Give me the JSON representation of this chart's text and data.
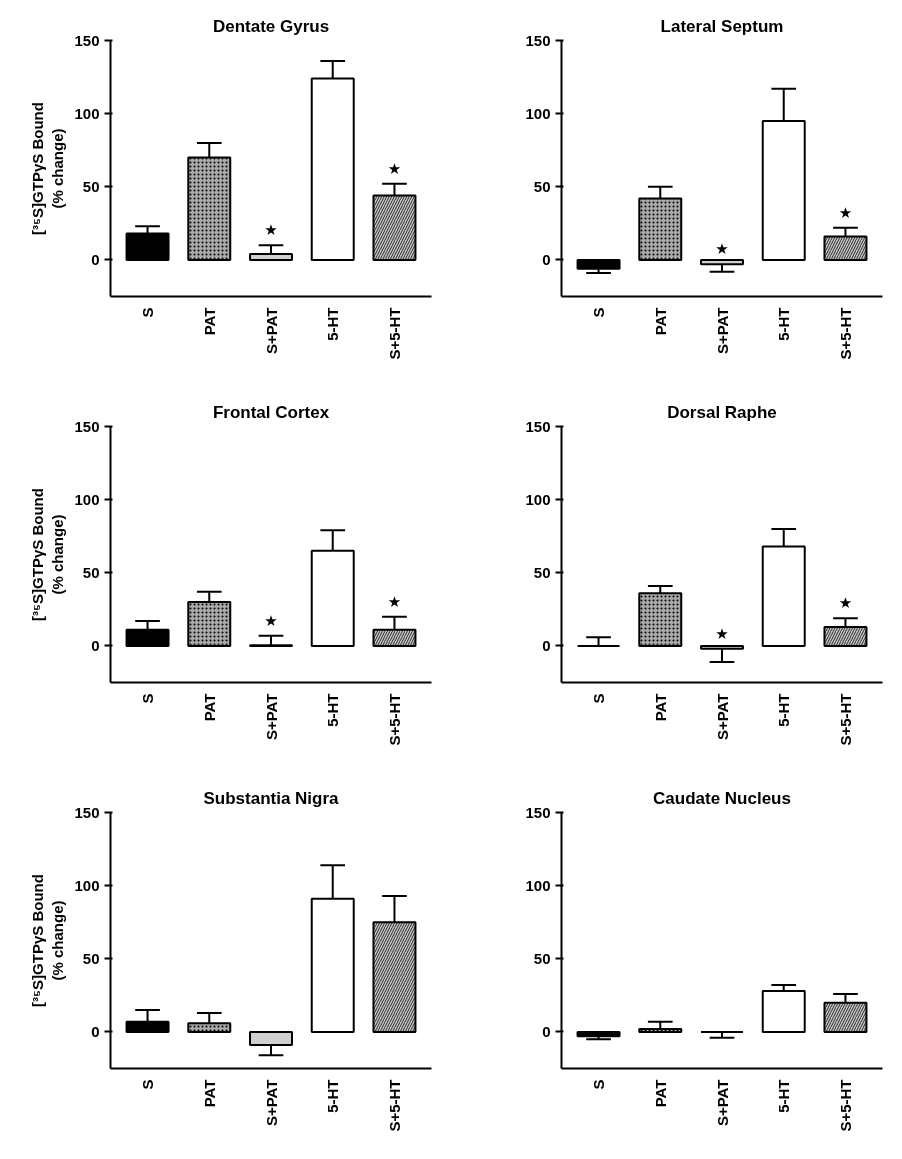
{
  "chart_data": [
    {
      "type": "bar",
      "title": "Dentate Gyrus",
      "ylabel": "[³⁵S]GTPγS Bound\n(% change)",
      "categories": [
        "S",
        "PAT",
        "S+PAT",
        "5-HT",
        "S+5-HT"
      ],
      "values": [
        18,
        70,
        4,
        124,
        44
      ],
      "errors": [
        [
          18,
          23
        ],
        [
          70,
          80
        ],
        [
          4,
          10
        ],
        [
          124,
          136
        ],
        [
          44,
          52
        ]
      ],
      "colors": [
        "#000000",
        "#a8a8a8",
        "#d0d0d0",
        "#ffffff",
        "#c8c8c8"
      ],
      "ylim": [
        -25,
        150
      ],
      "yticks": [
        0,
        50,
        100,
        150
      ],
      "grid": false,
      "annotations": [
        {
          "text": "★",
          "x": "S+PAT",
          "y": 4
        },
        {
          "text": "★",
          "x": "S+5-HT",
          "y": 44
        }
      ]
    },
    {
      "type": "bar",
      "title": "Lateral Septum",
      "categories": [
        "S",
        "PAT",
        "S+PAT",
        "5-HT",
        "S+5-HT"
      ],
      "values": [
        -6,
        42,
        -3,
        95,
        16
      ],
      "errors": [
        [
          -9,
          -6
        ],
        [
          42,
          50
        ],
        [
          -8,
          -3
        ],
        [
          95,
          117
        ],
        [
          16,
          22
        ]
      ],
      "colors": [
        "#000000",
        "#a8a8a8",
        "#d0d0d0",
        "#ffffff",
        "#c8c8c8"
      ],
      "ylim": [
        -25,
        150
      ],
      "yticks": [
        0,
        50,
        100,
        150
      ],
      "grid": false,
      "annotations": [
        {
          "text": "★",
          "x": "S+PAT",
          "y": -3
        },
        {
          "text": "★",
          "x": "S+5-HT",
          "y": 16
        }
      ]
    },
    {
      "type": "bar",
      "title": "Frontal Cortex",
      "ylabel": "[³⁵S]GTPγS Bound\n(% change)",
      "categories": [
        "S",
        "PAT",
        "S+PAT",
        "5-HT",
        "S+5-HT"
      ],
      "values": [
        11,
        30,
        0.5,
        65,
        11
      ],
      "errors": [
        [
          11,
          17
        ],
        [
          30,
          37
        ],
        [
          0.5,
          7
        ],
        [
          65,
          79
        ],
        [
          11,
          20
        ]
      ],
      "colors": [
        "#000000",
        "#a8a8a8",
        "#d0d0d0",
        "#ffffff",
        "#c8c8c8"
      ],
      "ylim": [
        -25,
        150
      ],
      "yticks": [
        0,
        50,
        100,
        150
      ],
      "grid": false,
      "annotations": [
        {
          "text": "★",
          "x": "S+PAT",
          "y": 0.5
        },
        {
          "text": "★",
          "x": "S+5-HT",
          "y": 11
        }
      ]
    },
    {
      "type": "bar",
      "title": "Dorsal Raphe",
      "categories": [
        "S",
        "PAT",
        "S+PAT",
        "5-HT",
        "S+5-HT"
      ],
      "values": [
        0,
        36,
        -2,
        68,
        13
      ],
      "errors": [
        [
          0,
          6
        ],
        [
          36,
          41
        ],
        [
          -11,
          -2
        ],
        [
          68,
          80
        ],
        [
          13,
          19
        ]
      ],
      "colors": [
        "#000000",
        "#a8a8a8",
        "#d0d0d0",
        "#ffffff",
        "#c8c8c8"
      ],
      "ylim": [
        -25,
        150
      ],
      "yticks": [
        0,
        50,
        100,
        150
      ],
      "grid": false,
      "annotations": [
        {
          "text": "★",
          "x": "S+PAT",
          "y": -2
        },
        {
          "text": "★",
          "x": "S+5-HT",
          "y": 13
        }
      ]
    },
    {
      "type": "bar",
      "title": "Substantia Nigra",
      "ylabel": "[³⁵S]GTPγS Bound\n(% change)",
      "categories": [
        "S",
        "PAT",
        "S+PAT",
        "5-HT",
        "S+5-HT"
      ],
      "values": [
        7,
        6,
        -9,
        91,
        75
      ],
      "errors": [
        [
          7,
          15
        ],
        [
          6,
          13
        ],
        [
          -16,
          -9
        ],
        [
          91,
          114
        ],
        [
          75,
          93
        ]
      ],
      "colors": [
        "#000000",
        "#a8a8a8",
        "#d0d0d0",
        "#ffffff",
        "#c8c8c8"
      ],
      "ylim": [
        -25,
        150
      ],
      "yticks": [
        0,
        50,
        100,
        150
      ],
      "grid": false
    },
    {
      "type": "bar",
      "title": "Caudate Nucleus",
      "categories": [
        "S",
        "PAT",
        "S+PAT",
        "5-HT",
        "S+5-HT"
      ],
      "values": [
        -3,
        2,
        0,
        28,
        20
      ],
      "errors": [
        [
          -5,
          -3
        ],
        [
          2,
          7
        ],
        [
          -4,
          0
        ],
        [
          28,
          32
        ],
        [
          20,
          26
        ]
      ],
      "colors": [
        "#000000",
        "#a8a8a8",
        "#000000",
        "#ffffff",
        "#c8c8c8"
      ],
      "ylim": [
        -25,
        150
      ],
      "yticks": [
        0,
        50,
        100,
        150
      ],
      "grid": false
    }
  ]
}
